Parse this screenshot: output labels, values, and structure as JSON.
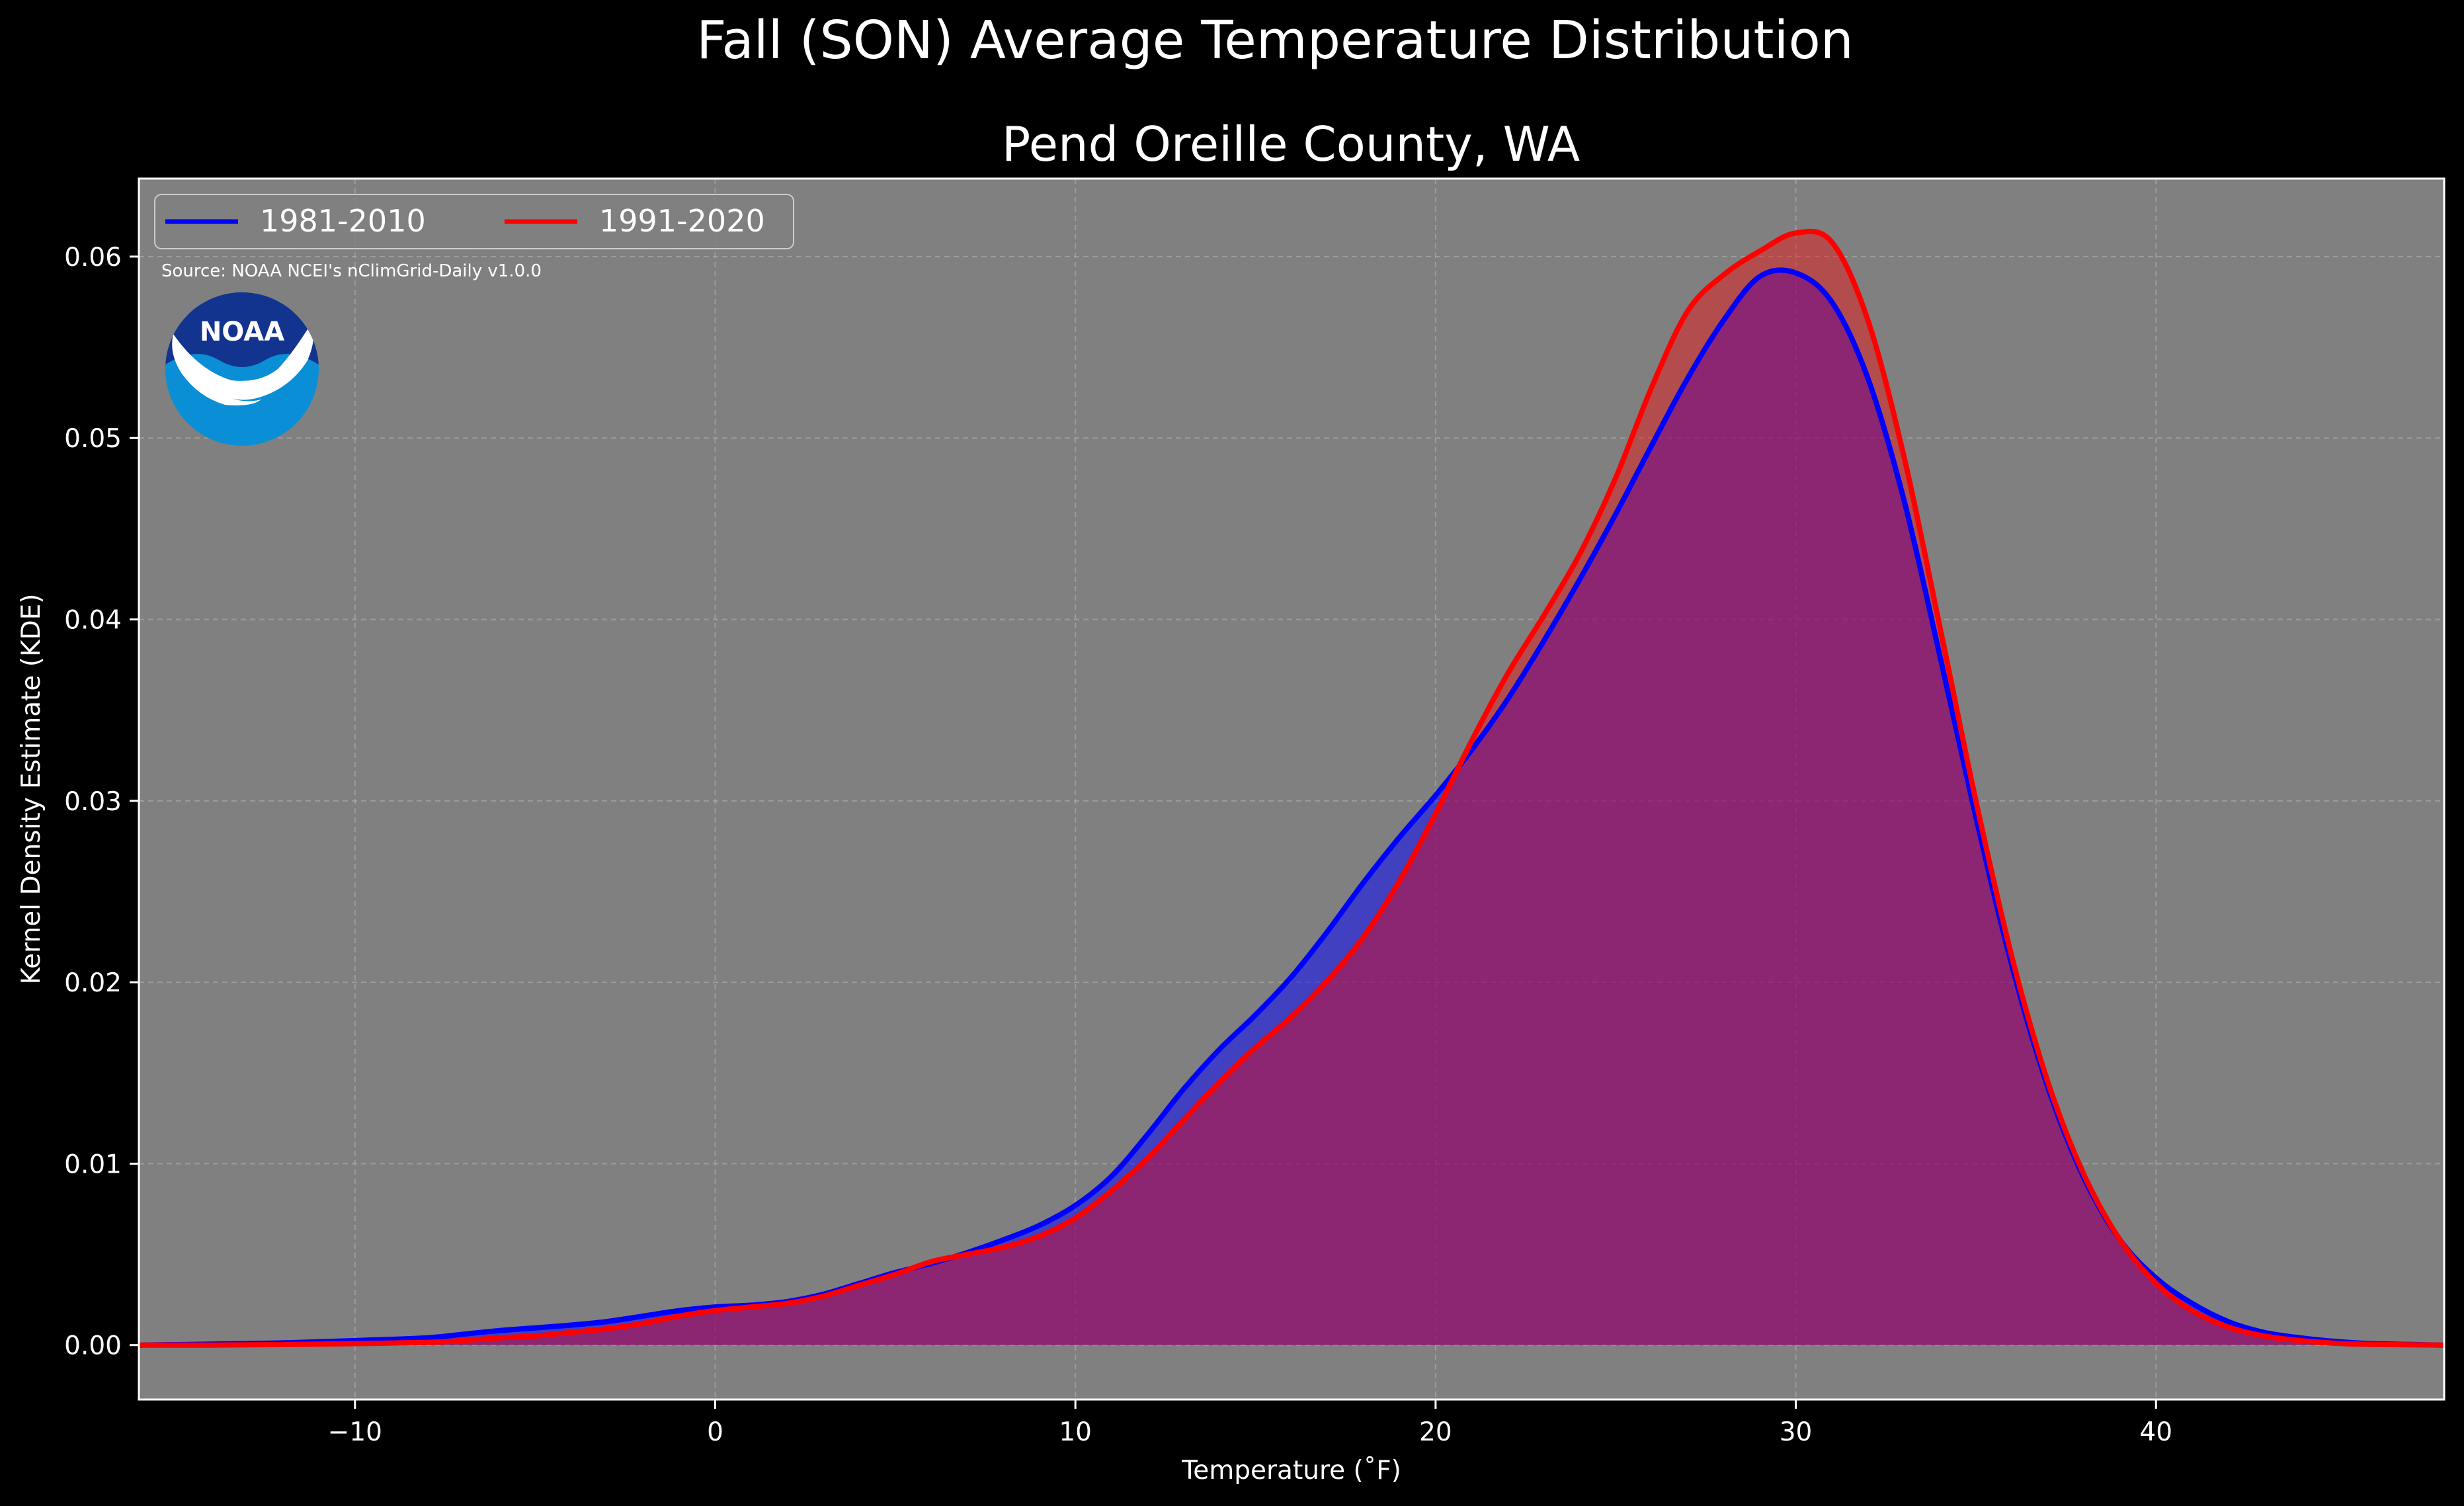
{
  "chart_data": {
    "type": "area",
    "title": "Fall (SON) Average Temperature Distribution",
    "subtitle": "Pend Oreille County, WA",
    "xlabel": "Temperature ($^\\circ$F)",
    "xlabel_display": "Temperature (˚F)",
    "ylabel": "Kernel Density Estimate (KDE)",
    "source": "Source: NOAA NCEI's nClimGrid-Daily v1.0.0",
    "logo_text": "NOAA",
    "xlim": [
      -16,
      48
    ],
    "ylim": [
      -0.003,
      0.0643
    ],
    "x_ticks": [
      -10,
      0,
      10,
      20,
      30,
      40
    ],
    "x_tick_labels": [
      "−10",
      "0",
      "10",
      "20",
      "30",
      "40"
    ],
    "y_ticks": [
      0.0,
      0.01,
      0.02,
      0.03,
      0.04,
      0.05,
      0.06
    ],
    "y_tick_labels": [
      "0.00",
      "0.01",
      "0.02",
      "0.03",
      "0.04",
      "0.05",
      "0.06"
    ],
    "grid": true,
    "legend_position": "top-left",
    "background_color": "#808080",
    "figure_background": "#000000",
    "series": [
      {
        "name": "1981-2010",
        "color": "#0000ff",
        "fill_opacity": 0.5,
        "points": [
          [
            -16,
            0.0
          ],
          [
            -14,
            5e-05
          ],
          [
            -12,
            0.00012
          ],
          [
            -10,
            0.00025
          ],
          [
            -8,
            0.0004
          ],
          [
            -7,
            0.0006
          ],
          [
            -6,
            0.0008
          ],
          [
            -5,
            0.00095
          ],
          [
            -4,
            0.0011
          ],
          [
            -3,
            0.0013
          ],
          [
            -2,
            0.0016
          ],
          [
            -1,
            0.0019
          ],
          [
            0,
            0.0021
          ],
          [
            1,
            0.0022
          ],
          [
            2,
            0.0024
          ],
          [
            3,
            0.0028
          ],
          [
            4,
            0.0034
          ],
          [
            5,
            0.004
          ],
          [
            6,
            0.0045
          ],
          [
            7,
            0.0051
          ],
          [
            8,
            0.0058
          ],
          [
            9,
            0.0066
          ],
          [
            10,
            0.0077
          ],
          [
            11,
            0.0093
          ],
          [
            12,
            0.0116
          ],
          [
            13,
            0.0141
          ],
          [
            14,
            0.0163
          ],
          [
            15,
            0.0182
          ],
          [
            16,
            0.0203
          ],
          [
            17,
            0.0228
          ],
          [
            18,
            0.0255
          ],
          [
            19,
            0.028
          ],
          [
            20,
            0.0303
          ],
          [
            21,
            0.0328
          ],
          [
            22,
            0.0356
          ],
          [
            23,
            0.0388
          ],
          [
            24,
            0.0422
          ],
          [
            25,
            0.0458
          ],
          [
            26,
            0.0496
          ],
          [
            27,
            0.0533
          ],
          [
            28,
            0.0565
          ],
          [
            29,
            0.0589
          ],
          [
            30,
            0.0591
          ],
          [
            31,
            0.0575
          ],
          [
            32,
            0.0533
          ],
          [
            33,
            0.0466
          ],
          [
            34,
            0.038
          ],
          [
            35,
            0.0291
          ],
          [
            36,
            0.0209
          ],
          [
            37,
            0.0142
          ],
          [
            38,
            0.0092
          ],
          [
            39,
            0.0058
          ],
          [
            40,
            0.0037
          ],
          [
            41,
            0.0023
          ],
          [
            42,
            0.0013
          ],
          [
            43,
            0.0007
          ],
          [
            44,
            0.0004
          ],
          [
            45,
            0.0002
          ],
          [
            46,
            8e-05
          ],
          [
            48,
            0.0
          ]
        ]
      },
      {
        "name": "1991-2020",
        "color": "#ff0000",
        "fill_opacity": 0.4,
        "points": [
          [
            -16,
            0.0
          ],
          [
            -14,
            0.0
          ],
          [
            -12,
            3e-05
          ],
          [
            -10,
            8e-05
          ],
          [
            -8,
            0.00015
          ],
          [
            -7,
            0.00025
          ],
          [
            -6,
            0.0004
          ],
          [
            -5,
            0.0005
          ],
          [
            -4,
            0.0007
          ],
          [
            -3,
            0.0009
          ],
          [
            -2,
            0.0012
          ],
          [
            -1,
            0.0016
          ],
          [
            0,
            0.0019
          ],
          [
            1,
            0.0021
          ],
          [
            2,
            0.0023
          ],
          [
            3,
            0.0027
          ],
          [
            4,
            0.0033
          ],
          [
            5,
            0.0039
          ],
          [
            6,
            0.0046
          ],
          [
            7,
            0.005
          ],
          [
            8,
            0.0054
          ],
          [
            9,
            0.006
          ],
          [
            10,
            0.007
          ],
          [
            11,
            0.0085
          ],
          [
            12,
            0.0103
          ],
          [
            13,
            0.0124
          ],
          [
            14,
            0.0145
          ],
          [
            15,
            0.0164
          ],
          [
            16,
            0.0181
          ],
          [
            17,
            0.0201
          ],
          [
            18,
            0.0225
          ],
          [
            19,
            0.0256
          ],
          [
            20,
            0.0293
          ],
          [
            21,
            0.0333
          ],
          [
            22,
            0.037
          ],
          [
            23,
            0.0402
          ],
          [
            24,
            0.0436
          ],
          [
            25,
            0.0478
          ],
          [
            26,
            0.0528
          ],
          [
            27,
            0.057
          ],
          [
            28,
            0.059
          ],
          [
            29,
            0.0603
          ],
          [
            30,
            0.0613
          ],
          [
            31,
            0.0608
          ],
          [
            32,
            0.0565
          ],
          [
            33,
            0.049
          ],
          [
            34,
            0.0396
          ],
          [
            35,
            0.03
          ],
          [
            36,
            0.0214
          ],
          [
            37,
            0.0145
          ],
          [
            38,
            0.0094
          ],
          [
            39,
            0.0058
          ],
          [
            40,
            0.0034
          ],
          [
            41,
            0.0019
          ],
          [
            42,
            0.001
          ],
          [
            43,
            0.0005
          ],
          [
            44,
            0.00025
          ],
          [
            45,
            0.0001
          ],
          [
            46,
            4e-05
          ],
          [
            48,
            0.0
          ]
        ]
      }
    ]
  }
}
